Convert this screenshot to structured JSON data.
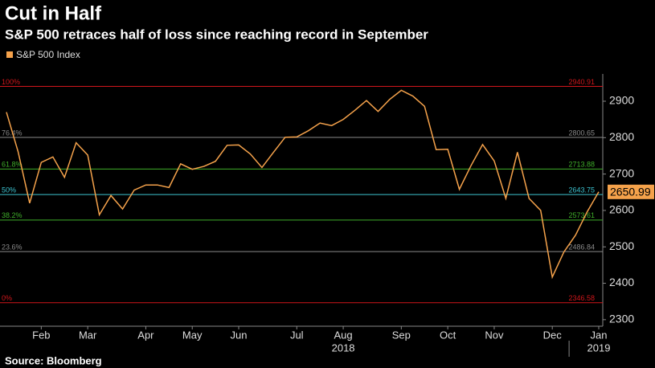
{
  "chart_data": {
    "type": "line",
    "title": "Cut in Half",
    "subtitle": "S&P 500 retraces half of loss since reaching record in September",
    "source": "Source: Bloomberg",
    "x": [
      0,
      1,
      2,
      3,
      4,
      5,
      6,
      7,
      8,
      9,
      10,
      11,
      12,
      13,
      14,
      15,
      16,
      17,
      18,
      19,
      20,
      21,
      22,
      23,
      24,
      25,
      26,
      27,
      28,
      29,
      30,
      31,
      32,
      33,
      34,
      35,
      36,
      37,
      38,
      39,
      40,
      41,
      42,
      43,
      44,
      45,
      46,
      47,
      48,
      49,
      50,
      51
    ],
    "series": [
      {
        "name": "S&P 500 Index",
        "color": "#f5a24b",
        "values": [
          2870,
          2762,
          2620,
          2732,
          2747,
          2691,
          2786,
          2752,
          2588,
          2641,
          2604,
          2656,
          2670,
          2670,
          2663,
          2728,
          2713,
          2721,
          2735,
          2779,
          2780,
          2755,
          2718,
          2760,
          2801,
          2802,
          2819,
          2840,
          2833,
          2850,
          2875,
          2902,
          2872,
          2905,
          2930,
          2914,
          2886,
          2767,
          2768,
          2658,
          2723,
          2781,
          2736,
          2633,
          2760,
          2633,
          2600,
          2417,
          2486,
          2532,
          2596,
          2650.99
        ]
      }
    ],
    "last_value": 2650.99,
    "xlim": [
      0,
      51
    ],
    "xticks": [
      {
        "value": 3,
        "label": "Feb"
      },
      {
        "value": 7,
        "label": "Mar"
      },
      {
        "value": 12,
        "label": "Apr"
      },
      {
        "value": 16,
        "label": "May"
      },
      {
        "value": 20,
        "label": "Jun"
      },
      {
        "value": 25,
        "label": "Jul"
      },
      {
        "value": 29,
        "label": "Aug"
      },
      {
        "value": 34,
        "label": "Sep"
      },
      {
        "value": 38,
        "label": "Oct"
      },
      {
        "value": 42,
        "label": "Nov"
      },
      {
        "value": 47,
        "label": "Dec"
      },
      {
        "value": 51,
        "label": "Jan"
      }
    ],
    "years": [
      {
        "value": 29,
        "label": "2018"
      },
      {
        "value": 51,
        "label": "2019"
      }
    ],
    "ylim": [
      2282,
      2975
    ],
    "yticks": [
      2300,
      2400,
      2500,
      2600,
      2700,
      2800,
      2900
    ],
    "levels": [
      {
        "label": "100%",
        "value": 2940.91,
        "color": "#d0161b"
      },
      {
        "label": "76.4%",
        "value": 2800.65,
        "color": "#8a8a8a"
      },
      {
        "label": "61.8%",
        "value": 2713.88,
        "color": "#3fae2a"
      },
      {
        "label": "50%",
        "value": 2643.75,
        "color": "#3cc3d0"
      },
      {
        "label": "38.2%",
        "value": 2573.61,
        "color": "#3fae2a"
      },
      {
        "label": "23.6%",
        "value": 2486.84,
        "color": "#8a8a8a"
      },
      {
        "label": "0%",
        "value": 2346.58,
        "color": "#d0161b"
      }
    ]
  }
}
